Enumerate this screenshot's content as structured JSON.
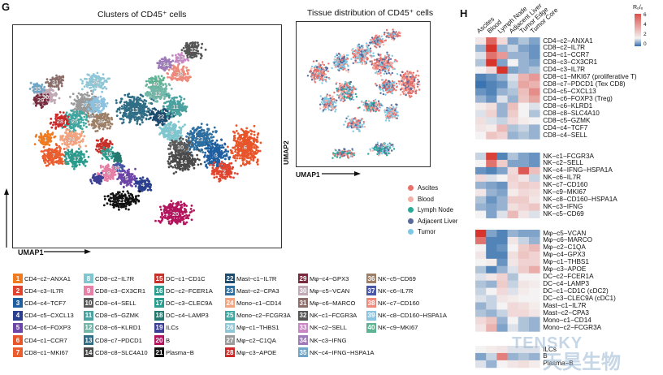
{
  "panel_g": {
    "letter": "G",
    "left_title": "Clusters of CD45⁺ cells",
    "right_title": "Tissue distribution of CD45⁺ cells",
    "umap1": "UMAP1",
    "umap2": "UMAP2"
  },
  "panel_h": {
    "letter": "H"
  },
  "colors": {
    "tissue": [
      "#e8706a",
      "#f2b0a8",
      "#2aa89a",
      "#5a6a9a",
      "#7ec8e3"
    ],
    "heat_low": "#3b74b0",
    "heat_mid": "#f4f2f2",
    "heat_high": "#d7342c"
  },
  "chart_data": [
    {
      "type": "scatter",
      "xlabel": "UMAP1",
      "ylabel": "UMAP2",
      "title": "Clusters of CD45⁺ cells",
      "point_labels": [
        "1",
        "2",
        "3",
        "4",
        "5",
        "6",
        "7",
        "8",
        "9",
        "10",
        "11",
        "12",
        "13",
        "14",
        "16",
        "17",
        "20",
        "21",
        "22",
        "23",
        "24",
        "25",
        "26",
        "27",
        "28",
        "29",
        "30",
        "31",
        "32",
        "33",
        "34",
        "35",
        "36",
        "37",
        "38",
        "39",
        "40"
      ],
      "clusters": [
        {
          "id": "1",
          "name": "CD4−c2−ANXA1",
          "color": "#f07a1f"
        },
        {
          "id": "2",
          "name": "CD4−c3−IL7R",
          "color": "#e0452f"
        },
        {
          "id": "3",
          "name": "CD4−c4−TCF7",
          "color": "#1f5fa0"
        },
        {
          "id": "4",
          "name": "CD4−c5−CXCL13",
          "color": "#2b3f8f"
        },
        {
          "id": "5",
          "name": "CD4−c6−FOXP3",
          "color": "#6d44a8"
        },
        {
          "id": "6",
          "name": "CD4−c1−CCR7",
          "color": "#e8552a"
        },
        {
          "id": "7",
          "name": "CD8−c1−MKI67",
          "color": "#ea5d2e"
        },
        {
          "id": "8",
          "name": "CD8−c2−IL7R",
          "color": "#7fc6cf"
        },
        {
          "id": "9",
          "name": "CD8−c3−CX3CR1",
          "color": "#e77fa7"
        },
        {
          "id": "10",
          "name": "CD8−c4−SELL",
          "color": "#5a5a5a"
        },
        {
          "id": "11",
          "name": "CD8−c5−GZMK",
          "color": "#4aa2a0"
        },
        {
          "id": "12",
          "name": "CD8−c6−KLRD1",
          "color": "#72b7a8"
        },
        {
          "id": "13",
          "name": "CD8−c7−PDCD1",
          "color": "#2f6e86"
        },
        {
          "id": "14",
          "name": "CD8−c8−SLC4A10",
          "color": "#4a4a4a"
        },
        {
          "id": "15",
          "name": "DC−c1−CD1C",
          "color": "#c8302a"
        },
        {
          "id": "16",
          "name": "DC−c2−FCER1A",
          "color": "#2c9d8f"
        },
        {
          "id": "17",
          "name": "DC−c3−CLEC9A",
          "color": "#2a9c8e"
        },
        {
          "id": "18",
          "name": "DC−c4−LAMP3",
          "color": "#25786f"
        },
        {
          "id": "19",
          "name": "ILCs",
          "color": "#3c3f95"
        },
        {
          "id": "20",
          "name": "B",
          "color": "#b3155d"
        },
        {
          "id": "21",
          "name": "Plasma−B",
          "color": "#111111"
        },
        {
          "id": "22",
          "name": "Mast−c1−IL7R",
          "color": "#1d4b6e"
        },
        {
          "id": "23",
          "name": "Mast−c2−CPA3",
          "color": "#2d6fa0"
        },
        {
          "id": "24",
          "name": "Mono−c1−CD14",
          "color": "#f2a37f"
        },
        {
          "id": "25",
          "name": "Mono−c2−FCGR3A",
          "color": "#3ea7a0"
        },
        {
          "id": "26",
          "name": "Mφ−c1−THBS1",
          "color": "#8fc7d6"
        },
        {
          "id": "27",
          "name": "Mφ−c2−C1QA",
          "color": "#9a9a9a"
        },
        {
          "id": "28",
          "name": "Mφ−c3−APOE",
          "color": "#cf2a2a"
        },
        {
          "id": "29",
          "name": "Mφ−c4−GPX3",
          "color": "#7a2a3e"
        },
        {
          "id": "30",
          "name": "Mφ−c5−VCAN",
          "color": "#c0a9b5"
        },
        {
          "id": "31",
          "name": "Mφ−c6−MARCO",
          "color": "#8b6d6a"
        },
        {
          "id": "32",
          "name": "NK−c1−FCGR3A",
          "color": "#555555"
        },
        {
          "id": "33",
          "name": "NK−c2−SELL",
          "color": "#c986c4"
        },
        {
          "id": "34",
          "name": "NK−c3−IFNG",
          "color": "#9e7ab8"
        },
        {
          "id": "35",
          "name": "NK−c4−IFNG−HSPA1A",
          "color": "#6fa6c8"
        },
        {
          "id": "36",
          "name": "NK−c5−CD69",
          "color": "#9c7f66"
        },
        {
          "id": "37",
          "name": "NK−c6−IL7R",
          "color": "#4a57a6"
        },
        {
          "id": "38",
          "name": "NK−c7−CD160",
          "color": "#ee8a7b"
        },
        {
          "id": "39",
          "name": "NK−c8−CD160−HSPA1A",
          "color": "#8bc2df"
        },
        {
          "id": "40",
          "name": "NK−c9−MKI67",
          "color": "#5eb393"
        }
      ]
    },
    {
      "type": "scatter",
      "title": "Tissue distribution of CD45⁺ cells",
      "xlabel": "UMAP1",
      "ylabel": "UMAP2",
      "legend": [
        "Ascites",
        "Blood",
        "Lymph Node",
        "Adjacent Liver",
        "Tumor"
      ],
      "legend_position": "bottom-right"
    },
    {
      "type": "heatmap",
      "colorbar_title": "Rₒ/ₑ",
      "colorbar_ticks": [
        "6",
        "4",
        "2",
        "0"
      ],
      "columns": [
        "Ascites",
        "Blood",
        "Lymph Node",
        "Adjacent Liver",
        "Tumor Edge",
        "Tumor Core"
      ],
      "groups": [
        {
          "rows": [
            "CD4−c2−ANXA1",
            "CD8−c2−IL7R",
            "CD4−c1−CCR7",
            "CD8−c3−CX3CR1",
            "CD4−c3−IL7R",
            "CD8−c1−MKI67 (proliferative T)",
            "CD8−c7−PDCD1 (Tex CD8)",
            "CD4−c5−CXCL13",
            "CD4−c6−FOXP3 (Treg)",
            "CD8−c6−KLRD1",
            "CD8−c8−SLC4A10",
            "CD8−c5−GZMK",
            "CD4−c4−TCF7",
            "CD8−c4−SELL"
          ],
          "values": [
            [
              1.2,
              3.2,
              1.4,
              0.5,
              0.7,
              0.5
            ],
            [
              0.6,
              4.2,
              0.6,
              0.8,
              0.5,
              0.4
            ],
            [
              0.9,
              3.0,
              2.4,
              0.6,
              0.6,
              0.4
            ],
            [
              0.7,
              4.0,
              0.5,
              1.0,
              0.6,
              0.5
            ],
            [
              1.0,
              1.4,
              5.0,
              0.5,
              0.6,
              0.7
            ],
            [
              0.3,
              0.4,
              0.6,
              0.9,
              2.0,
              2.4
            ],
            [
              0.2,
              0.3,
              0.4,
              0.8,
              2.2,
              2.0
            ],
            [
              0.4,
              0.3,
              0.6,
              0.7,
              1.8,
              2.6
            ],
            [
              0.6,
              0.4,
              0.9,
              0.6,
              1.7,
              2.2
            ],
            [
              1.1,
              1.3,
              0.6,
              1.8,
              1.0,
              0.9
            ],
            [
              0.9,
              1.5,
              0.6,
              1.6,
              1.0,
              0.7
            ],
            [
              1.3,
              0.9,
              0.8,
              1.4,
              1.1,
              1.0
            ],
            [
              1.2,
              1.1,
              1.9,
              0.7,
              0.8,
              0.6
            ],
            [
              1.0,
              1.7,
              1.5,
              0.6,
              0.7,
              0.6
            ]
          ]
        },
        {
          "rows": [
            "NK−c1−FCGR3A",
            "NK−c2−SELL",
            "NK−c4−IFNG−HSPA1A",
            "NK−c6−IL7R",
            "NK−c7−CD160",
            "NK−c9−MKI67",
            "NK−c8−CD160−HSPA1A",
            "NK−c3−IFNG",
            "NK−c5−CD69"
          ],
          "values": [
            [
              0.8,
              3.8,
              0.3,
              0.7,
              0.5,
              0.4
            ],
            [
              1.0,
              3.0,
              1.6,
              0.5,
              0.5,
              0.4
            ],
            [
              0.4,
              0.3,
              0.5,
              1.4,
              3.4,
              1.8
            ],
            [
              1.4,
              0.9,
              1.0,
              1.5,
              1.2,
              0.8
            ],
            [
              0.6,
              0.5,
              0.4,
              1.4,
              1.6,
              1.5
            ],
            [
              1.2,
              0.6,
              0.5,
              1.1,
              1.4,
              1.3
            ],
            [
              0.7,
              0.4,
              0.6,
              1.6,
              1.6,
              1.2
            ],
            [
              0.6,
              0.5,
              0.6,
              1.3,
              1.5,
              1.7
            ],
            [
              1.0,
              0.5,
              0.9,
              1.9,
              1.2,
              0.9
            ]
          ]
        },
        {
          "rows": [
            "Mφ−c5−VCAN",
            "Mφ−c6−MARCO",
            "Mφ−c2−C1QA",
            "Mφ−c4−GPX3",
            "Mφ−c1−THBS1",
            "Mφ−c3−APOE",
            "DC−c2−FCER1A",
            "DC−c4−LAMP3",
            "DC−c1−CD1C (cDC2)",
            "DC−c3−CLEC9A (cDC1)",
            "Mast−c1−IL7R",
            "Mast−c2−CPA3",
            "Mono−c1−CD14",
            "Mono−c2−FCGR3A"
          ],
          "values": [
            [
              5.5,
              0.5,
              0.3,
              0.6,
              0.5,
              0.5
            ],
            [
              3.0,
              0.3,
              0.3,
              1.2,
              0.8,
              0.6
            ],
            [
              1.0,
              0.3,
              0.4,
              1.0,
              1.6,
              1.9
            ],
            [
              1.2,
              0.3,
              0.3,
              1.3,
              1.7,
              1.5
            ],
            [
              1.0,
              1.1,
              0.4,
              1.2,
              1.5,
              1.5
            ],
            [
              0.7,
              0.3,
              0.6,
              0.9,
              1.6,
              2.1
            ],
            [
              0.9,
              1.2,
              1.5,
              0.7,
              1.0,
              1.0
            ],
            [
              0.7,
              0.6,
              1.6,
              0.8,
              1.2,
              1.1
            ],
            [
              0.8,
              1.0,
              1.4,
              0.9,
              1.1,
              1.0
            ],
            [
              0.9,
              0.8,
              1.2,
              1.1,
              1.0,
              1.0
            ],
            [
              0.6,
              0.8,
              1.0,
              1.4,
              1.3,
              1.1
            ],
            [
              0.7,
              0.6,
              0.8,
              1.4,
              1.4,
              1.2
            ],
            [
              1.4,
              1.7,
              0.6,
              1.0,
              0.7,
              0.6
            ],
            [
              1.2,
              2.0,
              0.5,
              0.9,
              0.7,
              0.6
            ]
          ]
        },
        {
          "rows": [
            "ILCs",
            "B",
            "Plasma−B"
          ],
          "values": [
            [
              1.0,
              1.1,
              1.2,
              0.9,
              0.9,
              0.9
            ],
            [
              0.5,
              0.8,
              2.8,
              0.6,
              0.7,
              0.6
            ],
            [
              0.9,
              0.6,
              1.0,
              1.2,
              1.3,
              1.1
            ]
          ]
        }
      ]
    }
  ],
  "watermark": {
    "latin": "TENSKY",
    "cjk": "天昊生物"
  }
}
